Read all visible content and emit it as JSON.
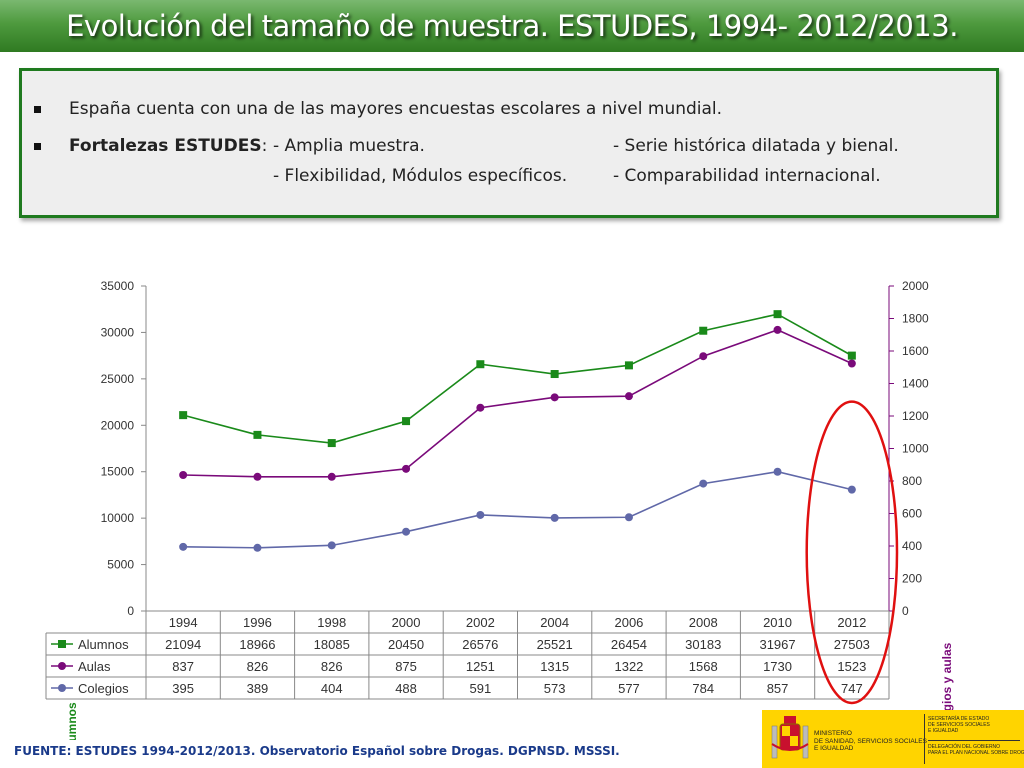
{
  "title": "Evolución del tamaño de muestra. ESTUDES, 1994- 2012/2013.",
  "bullets": {
    "b1": "España cuenta con una de las mayores encuestas escolares a nivel mundial.",
    "b2_bold": "Fortalezas ESTUDES",
    "b2_colon": ":",
    "b2_item1": "- Amplia muestra.",
    "b2_item2": "- Serie histórica dilatada y bienal.",
    "b2_item3": "- Flexibilidad, Módulos específicos.",
    "b2_item4": "- Comparabilidad internacional."
  },
  "chart_data": {
    "type": "line",
    "x": [
      "1994",
      "1996",
      "1998",
      "2000",
      "2002",
      "2004",
      "2006",
      "2008",
      "2010",
      "2012"
    ],
    "series": [
      {
        "name": "Alumnos",
        "axis": "left",
        "color": "#1a8a1a",
        "marker": "square",
        "values": [
          21094,
          18966,
          18085,
          20450,
          26576,
          25521,
          26454,
          30183,
          31967,
          27503
        ]
      },
      {
        "name": "Aulas",
        "axis": "right",
        "color": "#7a0a7a",
        "marker": "circle",
        "values": [
          837,
          826,
          826,
          875,
          1251,
          1315,
          1322,
          1568,
          1730,
          1523
        ]
      },
      {
        "name": "Colegios",
        "axis": "right",
        "color": "#6068a8",
        "marker": "circle",
        "values": [
          395,
          389,
          404,
          488,
          591,
          573,
          577,
          784,
          857,
          747
        ]
      }
    ],
    "ylabel_left": "Alumnos",
    "ylabel_right": "Colegios y aulas",
    "ylim_left": [
      0,
      35000
    ],
    "ylim_right": [
      0,
      2000
    ],
    "yticks_left": [
      0,
      5000,
      10000,
      15000,
      20000,
      25000,
      30000,
      35000
    ],
    "yticks_right": [
      0,
      200,
      400,
      600,
      800,
      1000,
      1200,
      1400,
      1600,
      1800,
      2000
    ],
    "data_table": true,
    "highlight_column": "2012",
    "highlight_color": "#e01010"
  },
  "footer": "FUENTE: ESTUDES 1994-2012/2013. Observatorio Español sobre Drogas. DGPNSD. MSSSI.",
  "logo": {
    "ministry": "MINISTERIO\nDE SANIDAD, SERVICIOS SOCIALES\nE IGUALDAD",
    "secretaria": "SECRETARÍA DE ESTADO\nDE SERVICIOS SOCIALES\nE IGUALDAD",
    "delegacion": "DELEGACIÓN DEL GOBIERNO\nPARA EL PLAN NACIONAL SOBRE DROGAS"
  }
}
